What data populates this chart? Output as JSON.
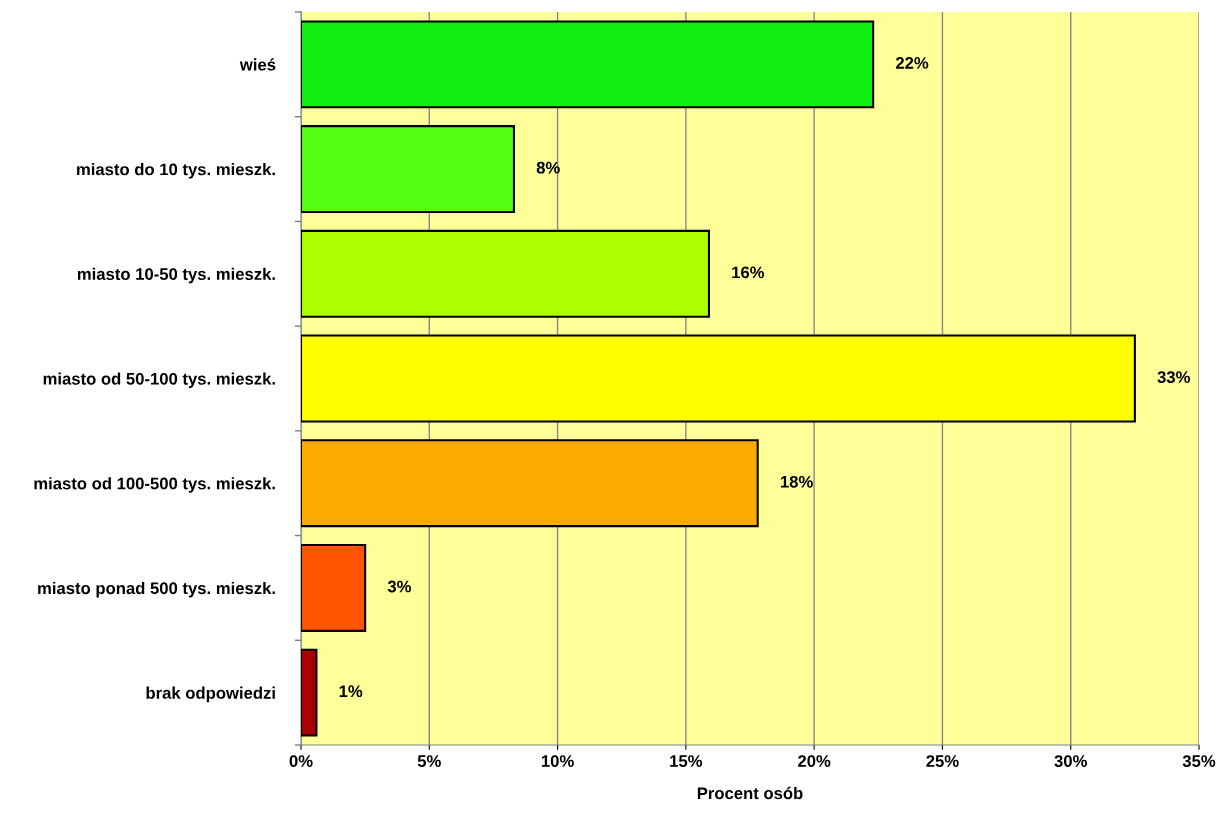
{
  "chart_data": {
    "type": "bar",
    "orientation": "horizontal",
    "xlabel": "Procent osób",
    "categories": [
      "wieś",
      "miasto do 10 tys. mieszk.",
      "miasto 10-50 tys. mieszk.",
      "miasto od 50-100 tys. mieszk.",
      "miasto od 100-500 tys. mieszk.",
      "miasto ponad 500 tys. mieszk.",
      "brak odpowiedzi"
    ],
    "values": [
      22.3,
      8.3,
      15.9,
      32.5,
      17.8,
      2.5,
      0.6
    ],
    "value_labels": [
      "22%",
      "8%",
      "16%",
      "33%",
      "18%",
      "3%",
      "1%"
    ],
    "colors": [
      "#11ee11",
      "#55ff11",
      "#aaff00",
      "#ffff00",
      "#ffaa00",
      "#ff5500",
      "#aa0000"
    ],
    "xlim": [
      0,
      35
    ],
    "xticks": [
      {
        "value": 0,
        "label": "0%"
      },
      {
        "value": 5,
        "label": "5%"
      },
      {
        "value": 10,
        "label": "10%"
      },
      {
        "value": 15,
        "label": "15%"
      },
      {
        "value": 20,
        "label": "20%"
      },
      {
        "value": 25,
        "label": "25%"
      },
      {
        "value": 30,
        "label": "30%"
      },
      {
        "value": 35,
        "label": "35%"
      }
    ],
    "grid": "x",
    "legend": false
  }
}
